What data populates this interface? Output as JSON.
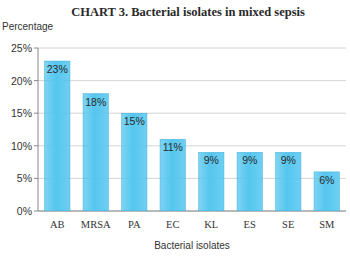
{
  "chart_data": {
    "type": "bar",
    "title": "CHART 3.  Bacterial isolates in mixed sepsis",
    "y_label": "Percentage",
    "x_label": "Bacterial isolates",
    "categories": [
      "AB",
      "MRSA",
      "PA",
      "EC",
      "KL",
      "ES",
      "SE",
      "SM"
    ],
    "values": [
      23,
      18,
      15,
      11,
      9,
      9,
      9,
      6
    ],
    "value_labels": [
      "23%",
      "18%",
      "15%",
      "11%",
      "9%",
      "9%",
      "9%",
      "6%"
    ],
    "color": "#55c6ef",
    "ylim": [
      0,
      25
    ],
    "yticks": [
      {
        "value": 0,
        "label": "0%"
      },
      {
        "value": 5,
        "label": "5%"
      },
      {
        "value": 10,
        "label": "10%"
      },
      {
        "value": 15,
        "label": "15%"
      },
      {
        "value": 20,
        "label": "20%"
      },
      {
        "value": 25,
        "label": "25%"
      }
    ],
    "grid": true,
    "data_labels": true
  }
}
